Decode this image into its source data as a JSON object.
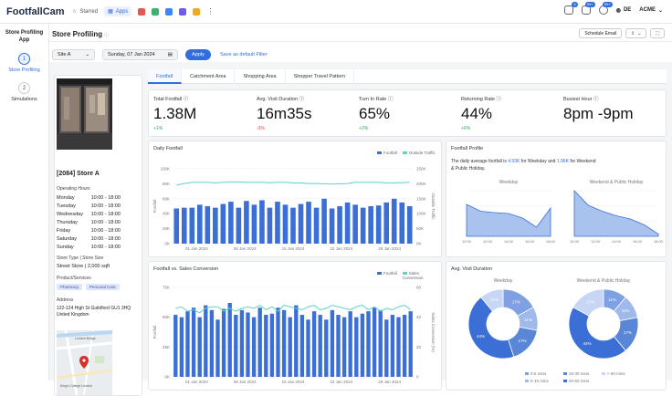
{
  "topbar": {
    "logo": "FootfallCam",
    "starred_label": "Starred",
    "apps_label": "Apps",
    "badges": [
      "5",
      "99+",
      "99+"
    ],
    "language": "DE",
    "org": "ACME"
  },
  "sidebar": {
    "title": "Store Profiling App",
    "steps": [
      {
        "num": "1",
        "label": "Store Profiling"
      },
      {
        "num": "2",
        "label": "Simulations"
      }
    ]
  },
  "page": {
    "title": "Store Profiling",
    "schedule_email": "Schedule Email"
  },
  "filters": {
    "site": "Site A",
    "date": "Sunday, 07 Jan 2024",
    "apply": "Apply",
    "save_default": "Save as default Filter"
  },
  "store": {
    "name": "[2084] Store A",
    "hours_label": "Operating Hours",
    "hours": [
      {
        "day": "Monday",
        "time": "10:00 - 18:00"
      },
      {
        "day": "Tuesday",
        "time": "10:00 - 18:00"
      },
      {
        "day": "Wednesday",
        "time": "10:00 - 18:00"
      },
      {
        "day": "Thursday",
        "time": "10:00 - 18:00"
      },
      {
        "day": "Friday",
        "time": "10:00 - 18:00"
      },
      {
        "day": "Saturday",
        "time": "10:00 - 18:00"
      },
      {
        "day": "Sunday",
        "time": "10:00 - 18:00"
      }
    ],
    "type_label": "Store Type | Store Size",
    "type_value": "Street Store | 2,000 sqft",
    "products_label": "Product/Services",
    "products": [
      "Pharmacy",
      "Personal Care"
    ],
    "address_label": "Address",
    "address": "122-124 High St Guildford GU1 3HQ",
    "country": "United Kingdom",
    "map_labels": [
      "London Bridge",
      "King's College London"
    ]
  },
  "tabs": [
    "Footfall",
    "Catchment Area",
    "Shopping Area",
    "Shopper Travel Pattern"
  ],
  "kpis": [
    {
      "title": "Total Footfall",
      "value": "1.38M",
      "delta": "+1%",
      "dir": "up"
    },
    {
      "title": "Avg. Visit Duration",
      "value": "16m35s",
      "delta": "-3%",
      "dir": "down"
    },
    {
      "title": "Turn In Rate",
      "value": "65%",
      "delta": "+3%",
      "dir": "up"
    },
    {
      "title": "Returning Rate",
      "value": "44%",
      "delta": "+9%",
      "dir": "up"
    },
    {
      "title": "Busiest Hour",
      "value": "8pm -9pm",
      "delta": "",
      "dir": "up"
    }
  ],
  "colors": {
    "bar": "#3c6fd6",
    "line": "#5fd3c7",
    "area": "#a9c3ee",
    "accent": "#2f6de1"
  },
  "chart_data": [
    {
      "type": "bar",
      "title": "Daily Footfall",
      "legend": [
        "Footfall",
        "Outside Traffic"
      ],
      "ylabel": "Footfall",
      "y2label": "Outside Traffic",
      "yticks": [
        "0K",
        "20K",
        "40K",
        "60K",
        "80K",
        "100K"
      ],
      "y2ticks": [
        "0K",
        "50K",
        "100K",
        "150K",
        "200K",
        "250K"
      ],
      "xticks": [
        "01 Jan 2024",
        "08 Jan 2024",
        "15 Jan 2024",
        "22 Jan 2024",
        "29 Jan 2024"
      ],
      "ylim": [
        0,
        100
      ],
      "y2lim": [
        0,
        250
      ],
      "values": [
        47,
        48,
        48,
        52,
        50,
        48,
        53,
        56,
        48,
        57,
        52,
        58,
        48,
        56,
        52,
        48,
        53,
        56,
        48,
        60,
        47,
        50,
        55,
        52,
        48,
        50,
        51,
        55,
        60,
        55,
        50
      ],
      "line": [
        195,
        201,
        205,
        205,
        205,
        203,
        205,
        206,
        206,
        205,
        205,
        205,
        204,
        205,
        205,
        203,
        203,
        201,
        201,
        200,
        199,
        200,
        201,
        205,
        205,
        205,
        205,
        203,
        203,
        204,
        205
      ]
    },
    {
      "type": "bar",
      "title": "Footfall vs. Sales Conversion",
      "legend": [
        "Footfall",
        "Sales Conversion"
      ],
      "ylabel": "Footfall",
      "y2label": "Sales Conversion (%)",
      "yticks": [
        "0K",
        "25K",
        "50K",
        "75K"
      ],
      "y2ticks": [
        "0",
        "20",
        "40",
        "60"
      ],
      "xticks": [
        "01 Jan 2024",
        "08 Jan 2024",
        "15 Jan 2024",
        "22 Jan 2024",
        "29 Jan 2024"
      ],
      "ylim": [
        0,
        75
      ],
      "y2lim": [
        0,
        60
      ],
      "values": [
        52,
        50,
        55,
        58,
        50,
        60,
        56,
        48,
        57,
        62,
        52,
        56,
        54,
        50,
        58,
        52,
        53,
        58,
        56,
        50,
        60,
        52,
        48,
        55,
        52,
        48,
        56,
        52,
        50,
        55,
        50,
        53,
        55,
        58,
        56,
        48,
        52,
        50,
        52,
        55
      ],
      "line": [
        46,
        47,
        44,
        45,
        43,
        46,
        47,
        47,
        44,
        46,
        44,
        46,
        47,
        46,
        48,
        45,
        47,
        44,
        48,
        47,
        46,
        45,
        47,
        48,
        45,
        46,
        48,
        47,
        46,
        45,
        47,
        48,
        45,
        47,
        44,
        46,
        45,
        47,
        48,
        45
      ]
    },
    {
      "type": "area",
      "title": "Footfall Profile",
      "description_pre": "The daily average footfall is",
      "weekday_avg": "4.93K",
      "description_mid": "for Weekday and",
      "weekend_avg": "1.96K",
      "description_post": "for Weekend & Public Holiday.",
      "subtitles": [
        "Weekday",
        "Weekend & Public Holiday"
      ],
      "x": [
        "10:00",
        "12:00",
        "14:00",
        "16:00",
        "18:00"
      ],
      "weekday": [
        70,
        55,
        52,
        50,
        40,
        20,
        62
      ],
      "weekend": [
        100,
        68,
        55,
        45,
        38,
        25,
        5
      ]
    },
    {
      "type": "pie",
      "title": "Avg. Visit Duration",
      "subtitles": [
        "Weekday",
        "Weekend & Public Holiday"
      ],
      "legend": [
        "0-5 mins",
        "5-15 mins",
        "15-30 mins",
        "20-60 mins",
        "> 60 mins"
      ],
      "weekday": [
        {
          "label": "17%",
          "value": 17
        },
        {
          "label": "11%",
          "value": 11
        },
        {
          "label": "17%",
          "value": 17
        },
        {
          "label": "44%",
          "value": 44
        },
        {
          "label": "11%",
          "value": 11
        }
      ],
      "weekend": [
        {
          "label": "11%",
          "value": 11
        },
        {
          "label": "11%",
          "value": 11
        },
        {
          "label": "17%",
          "value": 17
        },
        {
          "label": "44%",
          "value": 44
        },
        {
          "label": "17%",
          "value": 17
        }
      ]
    }
  ]
}
